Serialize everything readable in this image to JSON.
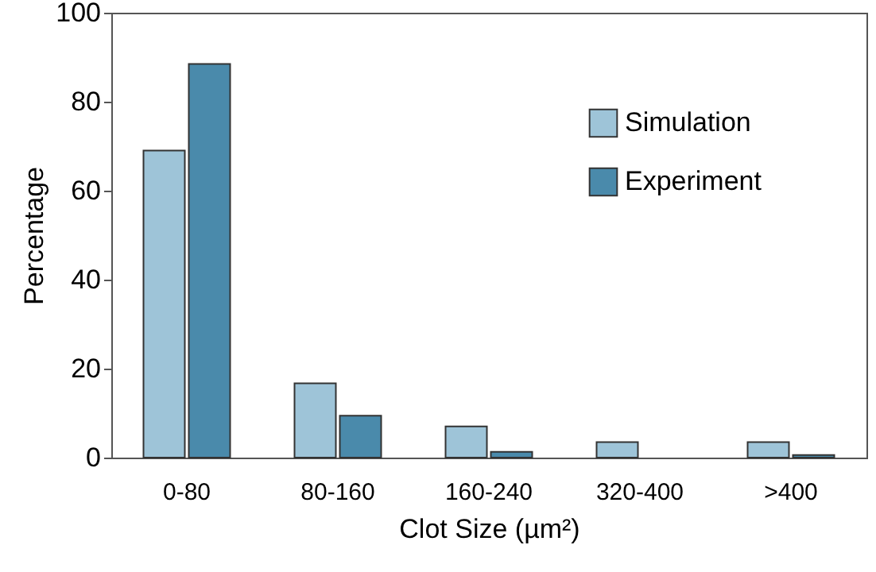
{
  "chart_data": {
    "type": "bar",
    "xlabel": "Clot Size (µm²)",
    "ylabel": "Percentage",
    "categories": [
      "0-80",
      "80-160",
      "160-240",
      "320-400",
      ">400"
    ],
    "series": [
      {
        "name": "Simulation",
        "color": "#9ec4d8",
        "values": [
          69,
          16.7,
          7,
          3.5,
          3.5
        ]
      },
      {
        "name": "Experiment",
        "color": "#4a8aab",
        "values": [
          88.5,
          9.4,
          1.3,
          null,
          0.6
        ]
      }
    ],
    "ylim": [
      0,
      100
    ],
    "yticks": [
      0,
      20,
      40,
      60,
      80,
      100
    ],
    "grid": false,
    "legend": "top right"
  }
}
